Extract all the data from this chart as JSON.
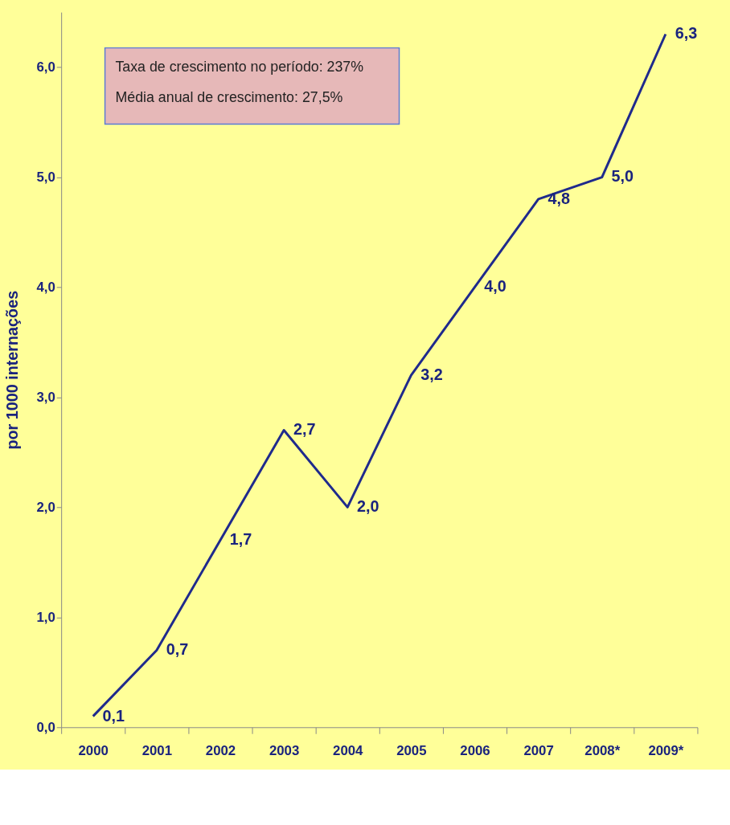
{
  "chart_data": {
    "type": "line",
    "ylabel": "por 1000 internações",
    "categories": [
      "2000",
      "2001",
      "2002",
      "2003",
      "2004",
      "2005",
      "2006",
      "2007",
      "2008*",
      "2009*"
    ],
    "series": [
      {
        "color": "#1f2a8c",
        "values": [
          0.1,
          0.7,
          1.7,
          2.7,
          2.0,
          3.2,
          4.0,
          4.8,
          5.0,
          6.3
        ],
        "value_labels": [
          "0,1",
          "0,7",
          "1,7",
          "2,7",
          "2,0",
          "3,2",
          "4,0",
          "4,8",
          "5,0",
          "6,3"
        ]
      }
    ],
    "ylim": [
      0,
      6.5
    ],
    "yticks": [
      {
        "value": 0,
        "label": "0,0"
      },
      {
        "value": 1,
        "label": "1,0"
      },
      {
        "value": 2,
        "label": "2,0"
      },
      {
        "value": 3,
        "label": "3,0"
      },
      {
        "value": 4,
        "label": "4,0"
      },
      {
        "value": 5,
        "label": "5,0"
      },
      {
        "value": 6,
        "label": "6,0"
      }
    ],
    "annotations": [
      "Taxa de crescimento no período: 237%",
      "Média anual de crescimento: 27,5%"
    ],
    "grid": false,
    "marker": "none",
    "line_style": "solid"
  }
}
